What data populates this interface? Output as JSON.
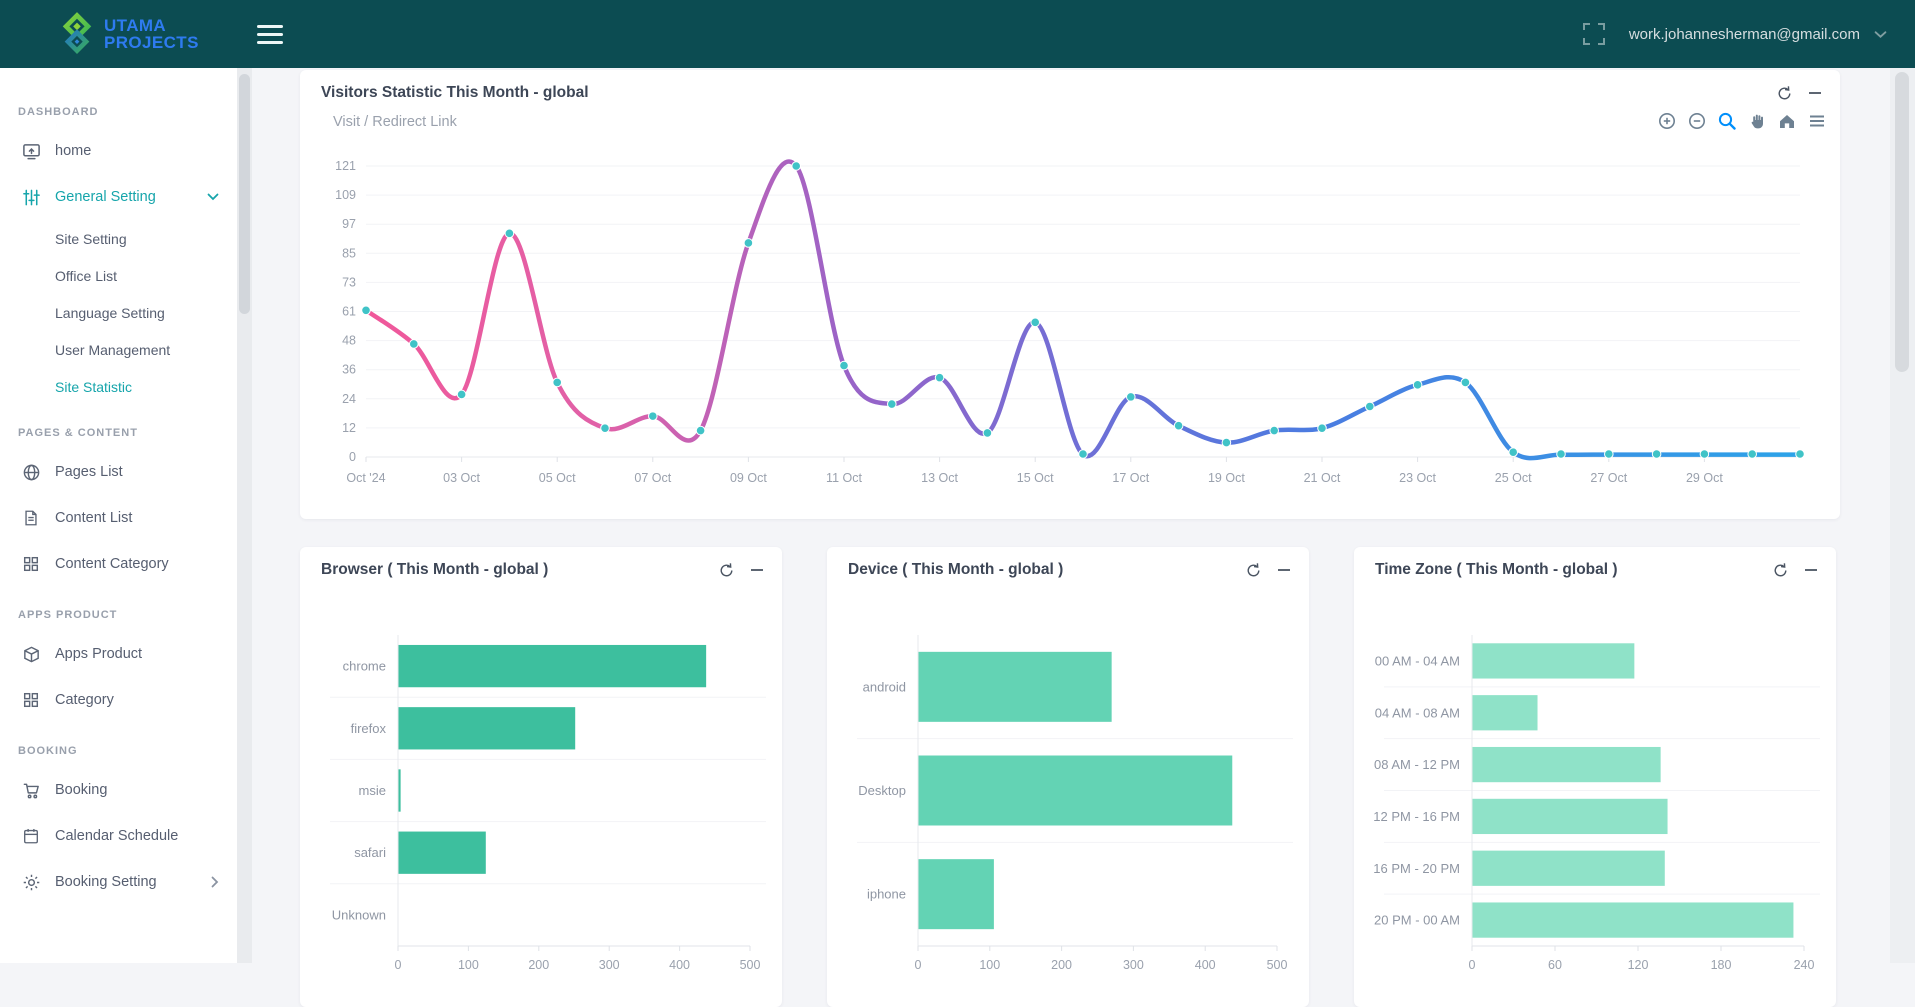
{
  "navbar": {
    "logo_line1": "UTAMA",
    "logo_line2": "PROJECTS",
    "email": "work.johannesherman@gmail.com",
    "icons": [
      "fullscreen-icon",
      "chevron-down-icon"
    ],
    "colors": {
      "bg": "#0c4c52",
      "logo_blue": "#2e7bf0",
      "logo_green": "#57c43c"
    }
  },
  "sidebar": {
    "sections": [
      {
        "label": "DASHBOARD",
        "items": [
          {
            "label": "home",
            "icon": "screen-share-icon",
            "active": false
          },
          {
            "label": "General Setting",
            "icon": "sliders-icon",
            "active": true,
            "chevron": "down",
            "children": [
              {
                "label": "Site Setting",
                "active": false
              },
              {
                "label": "Office List",
                "active": false
              },
              {
                "label": "Language Setting",
                "active": false
              },
              {
                "label": "User Management",
                "active": false
              },
              {
                "label": "Site Statistic",
                "active": true
              }
            ]
          }
        ]
      },
      {
        "label": "PAGES & CONTENT",
        "items": [
          {
            "label": "Pages List",
            "icon": "globe-icon"
          },
          {
            "label": "Content List",
            "icon": "file-icon"
          },
          {
            "label": "Content Category",
            "icon": "grid-icon"
          }
        ]
      },
      {
        "label": "APPS PRODUCT",
        "items": [
          {
            "label": "Apps Product",
            "icon": "box-icon"
          },
          {
            "label": "Category",
            "icon": "grid-icon"
          }
        ]
      },
      {
        "label": "BOOKING",
        "items": [
          {
            "label": "Booking",
            "icon": "cart-icon"
          },
          {
            "label": "Calendar Schedule",
            "icon": "calendar-icon"
          },
          {
            "label": "Booking Setting",
            "icon": "gear-icon",
            "chevron": "right"
          }
        ]
      }
    ],
    "colors": {
      "active": "#16a5ab",
      "text": "#565e70",
      "section": "#99a0ac"
    }
  },
  "cards": {
    "visitors": {
      "title": "Visitors Statistic This Month - global",
      "subtitle": "Visit / Redirect Link"
    },
    "browser": {
      "title": "Browser ( This Month - global )"
    },
    "device": {
      "title": "Device ( This Month - global )"
    },
    "timezone": {
      "title": "Time Zone ( This Month - global )"
    },
    "header_icons": [
      "refresh-icon",
      "minus-icon"
    ],
    "toolbar_icons": [
      "zoom-in-icon",
      "zoom-out-icon",
      "selection-zoom-icon",
      "pan-icon",
      "home-icon",
      "menu-icon"
    ]
  },
  "chart_data": [
    {
      "id": "visitors",
      "type": "line",
      "title": "Visit / Redirect Link",
      "x": [
        "01 Oct",
        "02 Oct",
        "03 Oct",
        "04 Oct",
        "05 Oct",
        "06 Oct",
        "07 Oct",
        "08 Oct",
        "09 Oct",
        "10 Oct",
        "11 Oct",
        "12 Oct",
        "13 Oct",
        "14 Oct",
        "15 Oct",
        "16 Oct",
        "17 Oct",
        "18 Oct",
        "19 Oct",
        "20 Oct",
        "21 Oct",
        "22 Oct",
        "23 Oct",
        "24 Oct",
        "25 Oct",
        "26 Oct",
        "27 Oct",
        "28 Oct",
        "29 Oct",
        "30 Oct",
        "31 Oct"
      ],
      "values": [
        61,
        47,
        26,
        93,
        31,
        12,
        17,
        11,
        89,
        121,
        38,
        22,
        33,
        10,
        56,
        1,
        25,
        13,
        6,
        11,
        12,
        21,
        30,
        31,
        2,
        1,
        1,
        1,
        1,
        1,
        1
      ],
      "x_tick_labels": [
        "Oct '24",
        "03 Oct",
        "05 Oct",
        "07 Oct",
        "09 Oct",
        "11 Oct",
        "13 Oct",
        "15 Oct",
        "17 Oct",
        "19 Oct",
        "21 Oct",
        "23 Oct",
        "25 Oct",
        "27 Oct",
        "29 Oct"
      ],
      "x_tick_days": [
        1,
        3,
        5,
        7,
        9,
        11,
        13,
        15,
        17,
        19,
        21,
        23,
        25,
        27,
        29
      ],
      "y_ticks": [
        121,
        109,
        97,
        85,
        73,
        61,
        48,
        36,
        24,
        12,
        0
      ],
      "ylim": [
        0,
        121
      ],
      "grid": true,
      "legend": "none",
      "line_gradient": [
        "#f0589a",
        "#e061a8",
        "#9a63c7",
        "#6f6fd6",
        "#4a7ce1",
        "#3b90e4",
        "#2ca3e8"
      ],
      "marker_color": "#40c3c7"
    },
    {
      "id": "browser",
      "type": "bar",
      "orientation": "horizontal",
      "categories": [
        "chrome",
        "firefox",
        "msie",
        "safari",
        "Unknown"
      ],
      "values": [
        437,
        251,
        3,
        124,
        0
      ],
      "xlim": [
        0,
        500
      ],
      "x_ticks": [
        0,
        100,
        200,
        300,
        400,
        500
      ],
      "bar_color": "#3dbf9e",
      "grid": true,
      "legend": "none"
    },
    {
      "id": "device",
      "type": "bar",
      "orientation": "horizontal",
      "categories": [
        "android",
        "Desktop",
        "iphone"
      ],
      "values": [
        269,
        437,
        105
      ],
      "xlim": [
        0,
        500
      ],
      "x_ticks": [
        0,
        100,
        200,
        300,
        400,
        500
      ],
      "bar_color": "#63d3b4",
      "grid": true,
      "legend": "none"
    },
    {
      "id": "timezone",
      "type": "bar",
      "orientation": "horizontal",
      "categories": [
        "00 AM - 04 AM",
        "04 AM - 08 AM",
        "08 AM - 12 PM",
        "12 PM - 16 PM",
        "16 PM - 20 PM",
        "20 PM - 00 AM"
      ],
      "values": [
        117,
        47,
        136,
        141,
        139,
        232
      ],
      "xlim": [
        0,
        240
      ],
      "x_ticks": [
        0,
        60,
        120,
        180,
        240
      ],
      "bar_color": "#8fe2c8",
      "grid": true,
      "legend": "none"
    }
  ]
}
